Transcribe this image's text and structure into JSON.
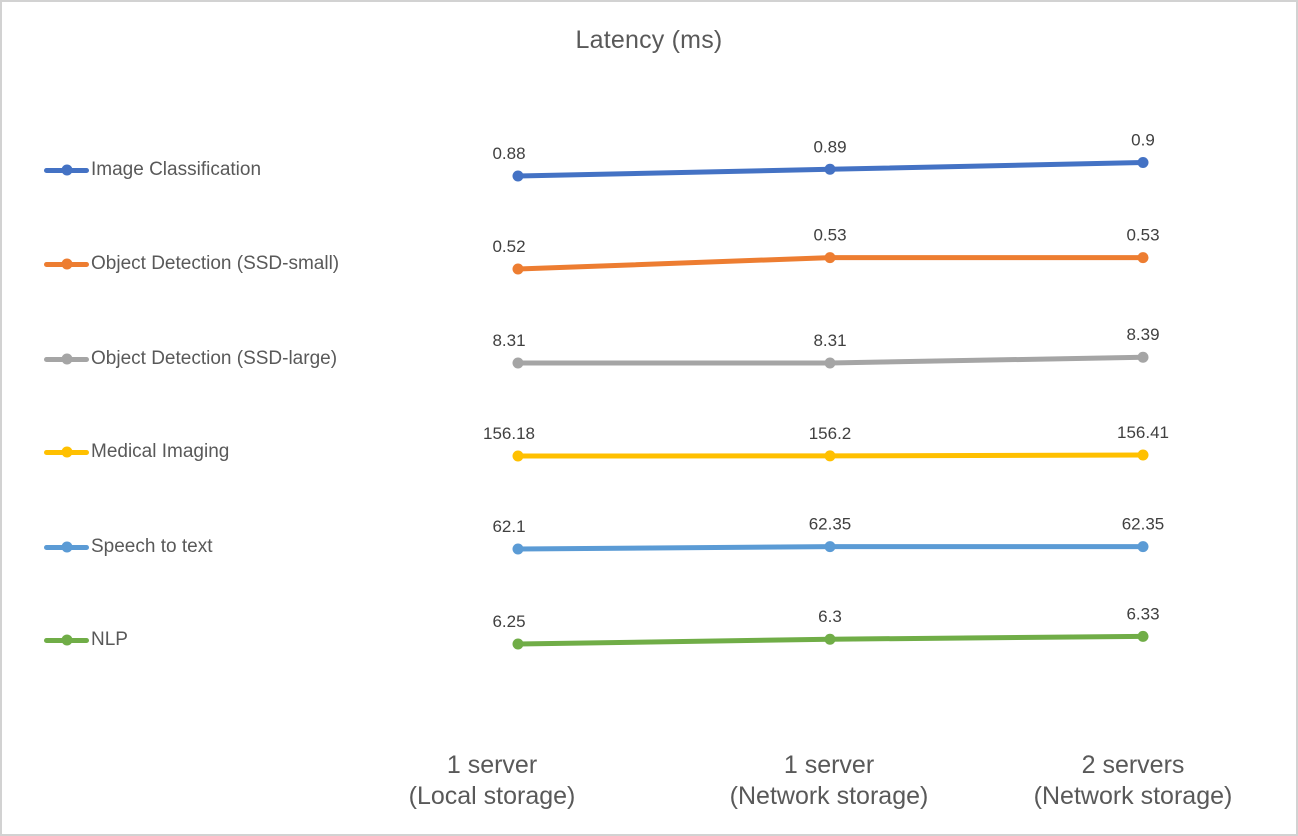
{
  "frame": {
    "background": "#ffffff",
    "border_color": "#d2d2d2"
  },
  "chart_data": {
    "type": "line",
    "title": "Latency (ms)",
    "categories": [
      [
        "1 server",
        "(Local storage)"
      ],
      [
        "1 server",
        "(Network storage)"
      ],
      [
        "2 servers",
        "(Network storage)"
      ]
    ],
    "series": [
      {
        "name": "Image Classification",
        "color": "#4472C4",
        "values": [
          0.88,
          0.89,
          0.9
        ]
      },
      {
        "name": "Object Detection (SSD-small)",
        "color": "#ED7D31",
        "values": [
          0.52,
          0.53,
          0.53
        ]
      },
      {
        "name": "Object Detection (SSD-large)",
        "color": "#A5A5A5",
        "values": [
          8.31,
          8.31,
          8.39
        ]
      },
      {
        "name": "Medical Imaging",
        "color": "#FFC000",
        "values": [
          156.18,
          156.2,
          156.41
        ]
      },
      {
        "name": "Speech to text",
        "color": "#5B9BD5",
        "values": [
          62.1,
          62.35,
          62.35
        ]
      },
      {
        "name": "NLP",
        "color": "#70AD47",
        "values": [
          6.25,
          6.3,
          6.33
        ]
      }
    ],
    "legend_position": "left",
    "data_labels": "above points",
    "grid": false,
    "y_axis_shown": false,
    "layout": "each series rendered in its own horizontal band, top to bottom in series order",
    "text_colors": {
      "title": "#595959",
      "legend": "#595959",
      "data_label": "#404040",
      "axis": "#595959"
    }
  }
}
